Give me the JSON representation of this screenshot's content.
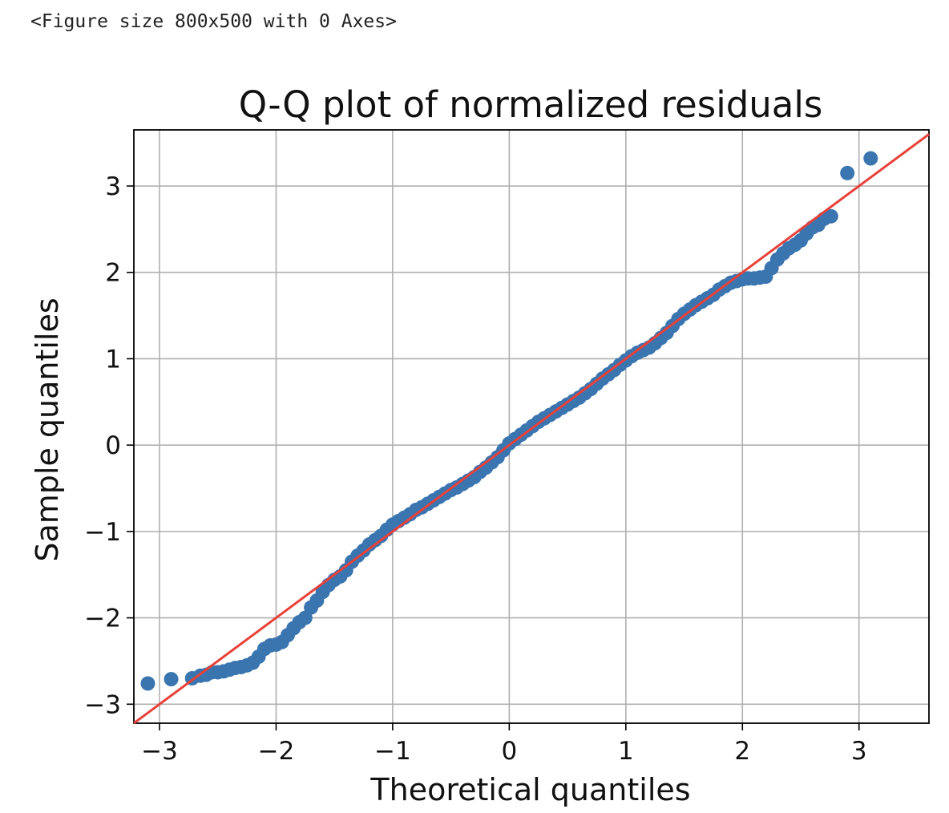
{
  "output_header": "<Figure size 800x500 with 0 Axes>",
  "chart_data": {
    "type": "scatter",
    "title": "Q-Q plot of normalized residuals",
    "xlabel": "Theoretical quantiles",
    "ylabel": "Sample quantiles",
    "xlim": [
      -3.22,
      3.6
    ],
    "ylim": [
      -3.22,
      3.65
    ],
    "grid": true,
    "xticks": [
      -3,
      -2,
      -1,
      0,
      1,
      2,
      3
    ],
    "yticks": [
      -3,
      -2,
      -1,
      0,
      1,
      2,
      3
    ],
    "xtick_labels": [
      "−3",
      "−2",
      "−1",
      "0",
      "1",
      "2",
      "3"
    ],
    "ytick_labels": [
      "−3",
      "−2",
      "−1",
      "0",
      "1",
      "2",
      "3"
    ],
    "marker_color": "#3a75b0",
    "reference_line": {
      "slope": 1,
      "intercept": 0,
      "color": "#e8413a"
    },
    "series": [
      {
        "name": "sample quantiles",
        "points": [
          [
            -3.1,
            -2.76
          ],
          [
            -2.9,
            -2.71
          ],
          [
            -2.72,
            -2.7
          ],
          [
            -2.65,
            -2.67
          ],
          [
            -2.6,
            -2.66
          ],
          [
            -2.55,
            -2.63
          ],
          [
            -2.5,
            -2.63
          ],
          [
            -2.45,
            -2.62
          ],
          [
            -2.4,
            -2.6
          ],
          [
            -2.35,
            -2.58
          ],
          [
            -2.3,
            -2.57
          ],
          [
            -2.25,
            -2.55
          ],
          [
            -2.2,
            -2.52
          ],
          [
            -2.15,
            -2.45
          ],
          [
            -2.1,
            -2.36
          ],
          [
            -2.05,
            -2.32
          ],
          [
            -2.0,
            -2.31
          ],
          [
            -1.95,
            -2.28
          ],
          [
            -1.9,
            -2.2
          ],
          [
            -1.85,
            -2.12
          ],
          [
            -1.8,
            -2.05
          ],
          [
            -1.75,
            -2.0
          ],
          [
            -1.7,
            -1.88
          ],
          [
            -1.65,
            -1.8
          ],
          [
            -1.6,
            -1.7
          ],
          [
            -1.55,
            -1.62
          ],
          [
            -1.5,
            -1.56
          ],
          [
            -1.45,
            -1.52
          ],
          [
            -1.4,
            -1.45
          ],
          [
            -1.35,
            -1.35
          ],
          [
            -1.3,
            -1.28
          ],
          [
            -1.25,
            -1.22
          ],
          [
            -1.2,
            -1.15
          ],
          [
            -1.15,
            -1.1
          ],
          [
            -1.1,
            -1.05
          ],
          [
            -1.05,
            -0.98
          ],
          [
            -1.0,
            -0.92
          ],
          [
            -0.95,
            -0.88
          ],
          [
            -0.9,
            -0.84
          ],
          [
            -0.85,
            -0.8
          ],
          [
            -0.8,
            -0.75
          ],
          [
            -0.75,
            -0.72
          ],
          [
            -0.7,
            -0.68
          ],
          [
            -0.65,
            -0.64
          ],
          [
            -0.6,
            -0.6
          ],
          [
            -0.55,
            -0.56
          ],
          [
            -0.5,
            -0.52
          ],
          [
            -0.45,
            -0.49
          ],
          [
            -0.4,
            -0.45
          ],
          [
            -0.35,
            -0.41
          ],
          [
            -0.3,
            -0.37
          ],
          [
            -0.25,
            -0.31
          ],
          [
            -0.2,
            -0.26
          ],
          [
            -0.15,
            -0.2
          ],
          [
            -0.1,
            -0.14
          ],
          [
            -0.05,
            -0.06
          ],
          [
            0.0,
            0.02
          ],
          [
            0.05,
            0.07
          ],
          [
            0.1,
            0.12
          ],
          [
            0.15,
            0.17
          ],
          [
            0.2,
            0.22
          ],
          [
            0.25,
            0.27
          ],
          [
            0.3,
            0.31
          ],
          [
            0.35,
            0.35
          ],
          [
            0.4,
            0.39
          ],
          [
            0.45,
            0.43
          ],
          [
            0.5,
            0.47
          ],
          [
            0.55,
            0.51
          ],
          [
            0.6,
            0.55
          ],
          [
            0.65,
            0.6
          ],
          [
            0.7,
            0.65
          ],
          [
            0.75,
            0.71
          ],
          [
            0.8,
            0.77
          ],
          [
            0.85,
            0.82
          ],
          [
            0.9,
            0.87
          ],
          [
            0.95,
            0.93
          ],
          [
            1.0,
            0.98
          ],
          [
            1.05,
            1.03
          ],
          [
            1.1,
            1.07
          ],
          [
            1.15,
            1.1
          ],
          [
            1.2,
            1.13
          ],
          [
            1.25,
            1.18
          ],
          [
            1.3,
            1.24
          ],
          [
            1.35,
            1.3
          ],
          [
            1.4,
            1.38
          ],
          [
            1.45,
            1.46
          ],
          [
            1.5,
            1.52
          ],
          [
            1.55,
            1.57
          ],
          [
            1.6,
            1.62
          ],
          [
            1.65,
            1.66
          ],
          [
            1.7,
            1.7
          ],
          [
            1.75,
            1.74
          ],
          [
            1.8,
            1.8
          ],
          [
            1.85,
            1.84
          ],
          [
            1.9,
            1.88
          ],
          [
            1.95,
            1.9
          ],
          [
            2.0,
            1.92
          ],
          [
            2.05,
            1.93
          ],
          [
            2.1,
            1.93
          ],
          [
            2.15,
            1.94
          ],
          [
            2.2,
            1.95
          ],
          [
            2.25,
            2.05
          ],
          [
            2.3,
            2.15
          ],
          [
            2.35,
            2.22
          ],
          [
            2.4,
            2.28
          ],
          [
            2.45,
            2.32
          ],
          [
            2.5,
            2.37
          ],
          [
            2.55,
            2.45
          ],
          [
            2.6,
            2.52
          ],
          [
            2.65,
            2.55
          ],
          [
            2.7,
            2.62
          ],
          [
            2.76,
            2.65
          ],
          [
            2.9,
            3.15
          ],
          [
            3.1,
            3.32
          ]
        ]
      }
    ]
  }
}
